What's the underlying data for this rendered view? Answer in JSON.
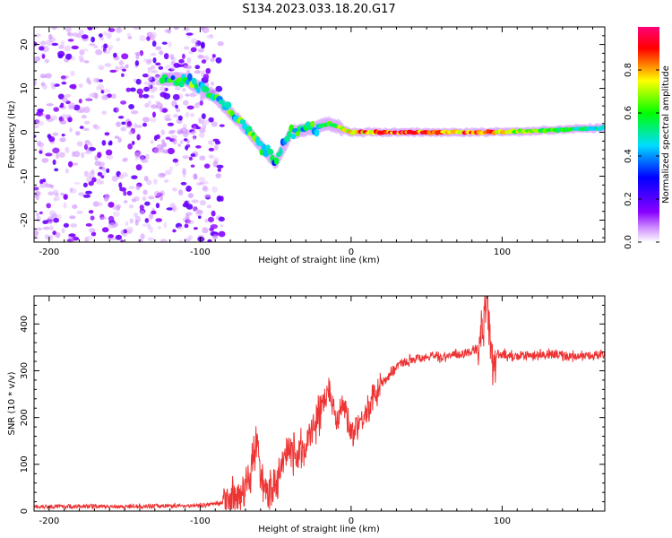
{
  "title": "S134.2023.033.18.20.G17",
  "chart_data": [
    {
      "type": "heatmap",
      "xlabel": "Height of straight line (km)",
      "ylabel": "Frequency (Hz)",
      "xlim": [
        -210,
        168
      ],
      "ylim": [
        -25,
        24
      ],
      "xticks": [
        -200,
        -100,
        0,
        100
      ],
      "yticks": [
        -20,
        -10,
        0,
        10,
        20
      ],
      "colorbar": {
        "label": "Normalized spectral amplitude",
        "range": [
          0,
          1
        ],
        "ticks": [
          "0.0",
          "0.2",
          "0.4",
          "0.6",
          "0.8"
        ],
        "colormap": [
          "#ffffff",
          "#8800ff",
          "#0000ff",
          "#00ddff",
          "#00ff00",
          "#ffff00",
          "#ff0000",
          "#ff0066"
        ]
      },
      "ridge": [
        {
          "x": -120,
          "y": 12,
          "a": 0.5
        },
        {
          "x": -110,
          "y": 12,
          "a": 0.55
        },
        {
          "x": -100,
          "y": 10,
          "a": 0.6
        },
        {
          "x": -90,
          "y": 8,
          "a": 0.6
        },
        {
          "x": -80,
          "y": 4.5,
          "a": 0.55
        },
        {
          "x": -70,
          "y": 1,
          "a": 0.55
        },
        {
          "x": -60,
          "y": -3,
          "a": 0.5
        },
        {
          "x": -50,
          "y": -7,
          "a": 0.5
        },
        {
          "x": -40,
          "y": 0,
          "a": 0.5
        },
        {
          "x": -30,
          "y": 0.5,
          "a": 0.55
        },
        {
          "x": -15,
          "y": 2,
          "a": 0.6
        },
        {
          "x": 0,
          "y": 0,
          "a": 0.85
        },
        {
          "x": 30,
          "y": 0,
          "a": 0.9
        },
        {
          "x": 60,
          "y": 0,
          "a": 0.9
        },
        {
          "x": 90,
          "y": 0,
          "a": 0.85
        },
        {
          "x": 120,
          "y": 0.3,
          "a": 0.7
        },
        {
          "x": 150,
          "y": 0.8,
          "a": 0.55
        },
        {
          "x": 168,
          "y": 1,
          "a": 0.5
        }
      ]
    },
    {
      "type": "line",
      "xlabel": "Height of straight line (km)",
      "ylabel": "SNR (10 * v/v)",
      "xlim": [
        -210,
        168
      ],
      "ylim": [
        0,
        460
      ],
      "xticks": [
        -200,
        -100,
        0,
        100
      ],
      "yticks": [
        0,
        100,
        200,
        300,
        400
      ],
      "color": "#ee3333",
      "series": [
        {
          "x": [
            -210,
            -150,
            -100,
            -85,
            -75,
            -70,
            -65,
            -62,
            -60,
            -55,
            -50,
            -45,
            -40,
            -35,
            -30,
            -25,
            -20,
            -15,
            -10,
            -5,
            0,
            10,
            20,
            30,
            40,
            50,
            60,
            70,
            80,
            85,
            88,
            90,
            92,
            94,
            96,
            100,
            110,
            130,
            150,
            168
          ],
          "y": [
            10,
            10,
            12,
            18,
            30,
            45,
            110,
            145,
            60,
            30,
            60,
            100,
            130,
            120,
            140,
            180,
            220,
            260,
            200,
            230,
            170,
            210,
            270,
            310,
            325,
            330,
            330,
            335,
            340,
            350,
            420,
            430,
            380,
            300,
            330,
            335,
            330,
            335,
            330,
            335
          ]
        }
      ]
    }
  ]
}
